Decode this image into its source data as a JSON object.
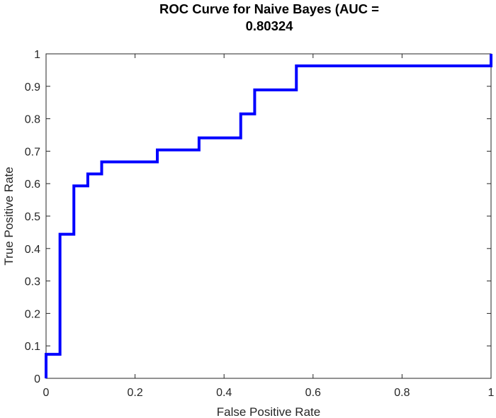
{
  "chart_data": {
    "type": "line",
    "title": [
      "ROC Curve for Naive Bayes (AUC =",
      "0.80324"
    ],
    "xlabel": "False Positive Rate",
    "ylabel": "True Positive Rate",
    "xlim": [
      0,
      1
    ],
    "ylim": [
      0,
      1
    ],
    "xticks": [
      "0",
      "0.2",
      "0.4",
      "0.6",
      "0.8",
      "1"
    ],
    "xtick_values": [
      0,
      0.2,
      0.4,
      0.6,
      0.8,
      1
    ],
    "yticks": [
      "0",
      "0.1",
      "0.2",
      "0.3",
      "0.4",
      "0.5",
      "0.6",
      "0.7",
      "0.8",
      "0.9",
      "1"
    ],
    "ytick_values": [
      0,
      0.1,
      0.2,
      0.3,
      0.4,
      0.5,
      0.6,
      0.7,
      0.8,
      0.9,
      1
    ],
    "grid": false,
    "series": [
      {
        "color": "#0000ff",
        "x": [
          0,
          0,
          0.0313,
          0.0313,
          0.0625,
          0.0625,
          0.0938,
          0.0938,
          0.125,
          0.125,
          0.25,
          0.25,
          0.3438,
          0.3438,
          0.4375,
          0.4375,
          0.4688,
          0.4688,
          0.5625,
          0.5625,
          1,
          1
        ],
        "y": [
          0,
          0.074,
          0.074,
          0.444,
          0.444,
          0.593,
          0.593,
          0.63,
          0.63,
          0.667,
          0.667,
          0.704,
          0.704,
          0.741,
          0.741,
          0.815,
          0.815,
          0.889,
          0.889,
          0.963,
          0.963,
          1
        ]
      }
    ]
  }
}
